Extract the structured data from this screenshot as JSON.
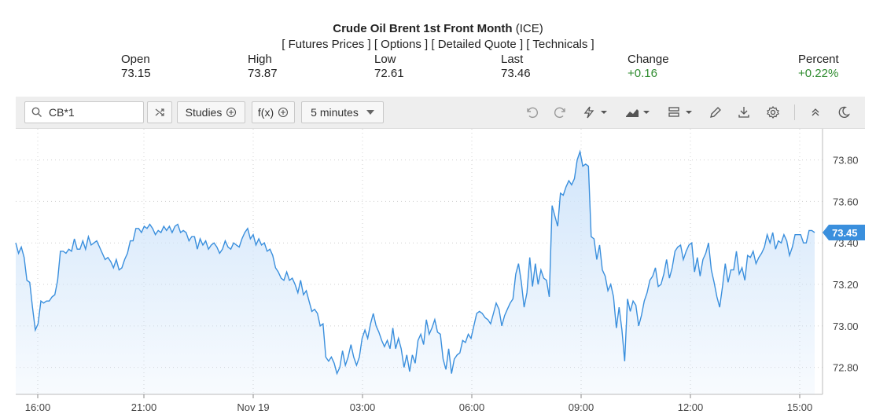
{
  "header": {
    "title_bold": "Crude Oil Brent 1st Front Month",
    "title_suffix": "(ICE)",
    "links": [
      "[ Futures Prices ]",
      "[ Options ]",
      "[ Detailed Quote ]",
      "[ Technicals ]"
    ]
  },
  "quote": {
    "open_label": "Open",
    "open_value": "73.15",
    "high_label": "High",
    "high_value": "73.87",
    "low_label": "Low",
    "low_value": "72.61",
    "last_label": "Last",
    "last_value": "73.46",
    "change_label": "Change",
    "change_value": "+0.16",
    "percent_label": "Percent",
    "percent_value": "+0.22%",
    "positive_color": "#2e8b2e"
  },
  "toolbar": {
    "symbol_value": "CB*1",
    "studies_label": "Studies",
    "fx_label": "f(x)",
    "interval_label": "5 minutes"
  },
  "chart_data": {
    "type": "area",
    "x_ticks": [
      "16:00",
      "21:00",
      "Nov 19",
      "03:00",
      "06:00",
      "09:00",
      "12:00",
      "15:00"
    ],
    "y_ticks": [
      "73.80",
      "73.60",
      "73.40",
      "73.20",
      "73.00",
      "72.80"
    ],
    "ylim": [
      72.67,
      73.95
    ],
    "last_price_label": "73.45",
    "line_color": "#3a8fdd",
    "fill_color": "#d6e9fb",
    "grid": "dotted",
    "values": [
      73.4,
      73.35,
      73.38,
      73.33,
      73.22,
      73.21,
      73.09,
      72.98,
      73.01,
      73.12,
      73.11,
      73.12,
      73.12,
      73.14,
      73.15,
      73.22,
      73.36,
      73.36,
      73.35,
      73.37,
      73.36,
      73.42,
      73.37,
      73.37,
      73.41,
      73.37,
      73.43,
      73.39,
      73.4,
      73.41,
      73.38,
      73.35,
      73.32,
      73.33,
      73.31,
      73.28,
      73.32,
      73.27,
      73.28,
      73.32,
      73.35,
      73.41,
      73.41,
      73.47,
      73.47,
      73.45,
      73.48,
      73.47,
      73.49,
      73.47,
      73.44,
      73.46,
      73.45,
      73.48,
      73.46,
      73.48,
      73.45,
      73.48,
      73.49,
      73.45,
      73.46,
      73.45,
      73.41,
      73.43,
      73.43,
      73.37,
      73.42,
      73.39,
      73.41,
      73.37,
      73.39,
      73.4,
      73.38,
      73.35,
      73.37,
      73.41,
      73.38,
      73.37,
      73.4,
      73.39,
      73.38,
      73.42,
      73.45,
      73.47,
      73.42,
      73.44,
      73.39,
      73.42,
      73.39,
      73.4,
      73.36,
      73.37,
      73.34,
      73.28,
      73.26,
      73.23,
      73.22,
      73.26,
      73.22,
      73.23,
      73.2,
      73.16,
      73.22,
      73.15,
      73.17,
      73.12,
      73.07,
      73.08,
      73.06,
      73.0,
      73.01,
      72.85,
      72.83,
      72.85,
      72.82,
      72.77,
      72.8,
      72.88,
      72.81,
      72.85,
      72.91,
      72.85,
      72.81,
      72.85,
      72.94,
      72.98,
      72.94,
      73.01,
      73.06,
      73.0,
      72.97,
      72.93,
      72.9,
      72.93,
      72.89,
      72.99,
      72.89,
      72.94,
      72.89,
      72.8,
      72.86,
      72.78,
      72.86,
      72.82,
      72.93,
      72.96,
      72.91,
      73.03,
      72.96,
      72.99,
      73.03,
      72.97,
      72.96,
      72.84,
      72.79,
      72.89,
      72.77,
      72.84,
      72.86,
      72.87,
      72.93,
      72.92,
      72.96,
      72.94,
      73.0,
      73.06,
      73.07,
      73.06,
      73.04,
      73.03,
      73.01,
      73.06,
      73.11,
      73.08,
      73.0,
      73.05,
      73.08,
      73.11,
      73.13,
      73.25,
      73.3,
      73.21,
      73.09,
      73.16,
      73.33,
      73.19,
      73.3,
      73.2,
      73.27,
      73.23,
      73.22,
      73.14,
      73.58,
      73.53,
      73.48,
      73.64,
      73.63,
      73.67,
      73.7,
      73.68,
      73.71,
      73.8,
      73.84,
      73.77,
      73.78,
      73.77,
      73.43,
      73.42,
      73.32,
      73.39,
      73.27,
      73.24,
      73.17,
      73.2,
      73.14,
      72.99,
      73.09,
      72.98,
      72.83,
      73.13,
      73.07,
      73.12,
      73.1,
      73.0,
      73.05,
      73.12,
      73.16,
      73.22,
      73.24,
      73.28,
      73.19,
      73.2,
      73.25,
      73.32,
      73.23,
      73.28,
      73.36,
      73.38,
      73.39,
      73.32,
      73.36,
      73.39,
      73.4,
      73.26,
      73.33,
      73.24,
      73.32,
      73.35,
      73.4,
      73.27,
      73.21,
      73.14,
      73.09,
      73.19,
      73.3,
      73.21,
      73.27,
      73.27,
      73.36,
      73.25,
      73.28,
      73.22,
      73.34,
      73.33,
      73.36,
      73.3,
      73.33,
      73.35,
      73.38,
      73.44,
      73.4,
      73.45,
      73.37,
      73.41,
      73.4,
      73.44,
      73.41,
      73.34,
      73.38,
      73.44,
      73.44,
      73.44,
      73.4,
      73.4,
      73.46,
      73.46,
      73.45
    ]
  }
}
